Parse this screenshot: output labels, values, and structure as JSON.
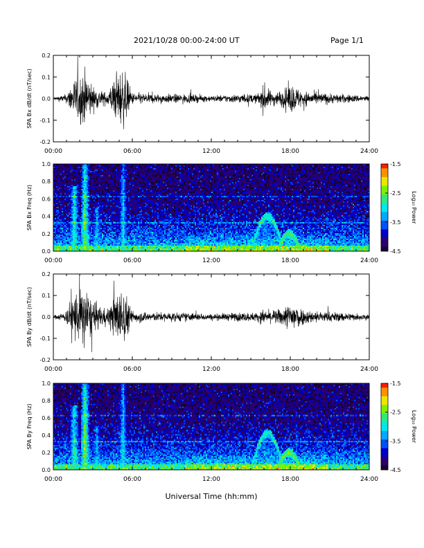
{
  "header": {
    "title": "2021/10/28  00:00-24:00 UT",
    "page": "Page 1/1"
  },
  "footer": {
    "xlabel": "Universal Time (hh:mm)"
  },
  "colors": {
    "trace": "#000000",
    "colormap": [
      "#1a0033",
      "#2a006e",
      "#0000c8",
      "#0050ff",
      "#00a8ff",
      "#00e8e8",
      "#30e880",
      "#7ff000",
      "#e8e800",
      "#ff9000",
      "#ff1a00"
    ]
  },
  "chart_data": [
    {
      "type": "line",
      "ylabel": "SPA Bx dB/dt (nT/sec)",
      "ylim": [
        -0.2,
        0.2
      ],
      "yticks": [
        "0.2",
        "0.1",
        "0.0",
        "-0.1",
        "-0.2"
      ],
      "xlim": [
        "00:00",
        "24:00"
      ],
      "xticks": [
        "00:00",
        "06:00",
        "12:00",
        "18:00",
        "24:00"
      ],
      "series": [
        {
          "x_hours": [
            0,
            1,
            1.5,
            2,
            2.5,
            3,
            4,
            5,
            5.3,
            6,
            8,
            10,
            12,
            14,
            15.5,
            16,
            16.5,
            17,
            17.5,
            18,
            19,
            20,
            22,
            24
          ],
          "amplitude": [
            0.01,
            0.03,
            0.13,
            0.16,
            0.19,
            0.08,
            0.04,
            0.18,
            0.2,
            0.04,
            0.03,
            0.03,
            0.02,
            0.03,
            0.03,
            0.1,
            0.05,
            0.05,
            0.06,
            0.1,
            0.05,
            0.04,
            0.03,
            0.02
          ]
        }
      ]
    },
    {
      "type": "heatmap",
      "ylabel": "SPA Bx Freq (Hz)",
      "ylim": [
        0.0,
        1.0
      ],
      "yticks": [
        "1.0",
        "0.8",
        "0.6",
        "0.4",
        "0.2",
        "0.0"
      ],
      "xlim": [
        "00:00",
        "24:00"
      ],
      "xticks": [
        "00:00",
        "06:00",
        "12:00",
        "18:00",
        "24:00"
      ],
      "colorbar": {
        "label": "Log₁₀ Power",
        "range": [
          -4.5,
          -1.5
        ],
        "ticks": [
          "-1.5",
          "-2.5",
          "-3.5",
          "-4.5"
        ]
      },
      "features": [
        {
          "kind": "vertical_burst",
          "t_hours": 1.6,
          "max_freq": 0.75,
          "level": -2.6
        },
        {
          "kind": "vertical_burst",
          "t_hours": 2.4,
          "max_freq": 1.0,
          "level": -2.4
        },
        {
          "kind": "vertical_burst",
          "t_hours": 3.3,
          "max_freq": 0.5,
          "level": -3.0
        },
        {
          "kind": "vertical_burst",
          "t_hours": 5.3,
          "max_freq": 1.0,
          "level": -2.8
        },
        {
          "kind": "arc",
          "t_start": 15.0,
          "t_end": 17.8,
          "freq_peak": 0.4,
          "level": -2.8
        },
        {
          "kind": "arc",
          "t_start": 17.0,
          "t_end": 19.0,
          "freq_peak": 0.2,
          "level": -2.6
        }
      ]
    },
    {
      "type": "line",
      "ylabel": "SPA By dB/dt (nT/sec)",
      "ylim": [
        -0.2,
        0.2
      ],
      "yticks": [
        "0.2",
        "0.1",
        "0.0",
        "-0.1",
        "-0.2"
      ],
      "xlim": [
        "00:00",
        "24:00"
      ],
      "xticks": [
        "00:00",
        "06:00",
        "12:00",
        "18:00",
        "24:00"
      ],
      "series": [
        {
          "x_hours": [
            0,
            1,
            1.5,
            2,
            2.5,
            3,
            4,
            5,
            5.3,
            6,
            8,
            10,
            12,
            14,
            15.5,
            16,
            16.5,
            17,
            17.5,
            18,
            18.3,
            19,
            20,
            22,
            24
          ],
          "amplitude": [
            0.01,
            0.04,
            0.17,
            0.19,
            0.2,
            0.1,
            0.05,
            0.18,
            0.2,
            0.04,
            0.03,
            0.03,
            0.02,
            0.03,
            0.03,
            0.05,
            0.04,
            0.05,
            0.06,
            0.1,
            0.11,
            0.05,
            0.04,
            0.03,
            0.02
          ]
        }
      ]
    },
    {
      "type": "heatmap",
      "ylabel": "SPA By Freq (Hz)",
      "ylim": [
        0.0,
        1.0
      ],
      "yticks": [
        "1.0",
        "0.8",
        "0.6",
        "0.4",
        "0.2",
        "0.0"
      ],
      "xlim": [
        "00:00",
        "24:00"
      ],
      "xticks": [
        "00:00",
        "06:00",
        "12:00",
        "18:00",
        "24:00"
      ],
      "colorbar": {
        "label": "Log₁₀ Power",
        "range": [
          -4.5,
          -1.5
        ],
        "ticks": [
          "-1.5",
          "-2.5",
          "-3.5",
          "-4.5"
        ]
      },
      "features": [
        {
          "kind": "vertical_burst",
          "t_hours": 1.6,
          "max_freq": 0.75,
          "level": -2.6
        },
        {
          "kind": "vertical_burst",
          "t_hours": 2.4,
          "max_freq": 1.0,
          "level": -2.3
        },
        {
          "kind": "vertical_burst",
          "t_hours": 3.3,
          "max_freq": 0.5,
          "level": -3.0
        },
        {
          "kind": "vertical_burst",
          "t_hours": 5.3,
          "max_freq": 1.0,
          "level": -2.8
        },
        {
          "kind": "arc",
          "t_start": 15.0,
          "t_end": 17.8,
          "freq_peak": 0.42,
          "level": -2.8
        },
        {
          "kind": "arc",
          "t_start": 17.0,
          "t_end": 19.0,
          "freq_peak": 0.2,
          "level": -2.5
        }
      ]
    }
  ]
}
